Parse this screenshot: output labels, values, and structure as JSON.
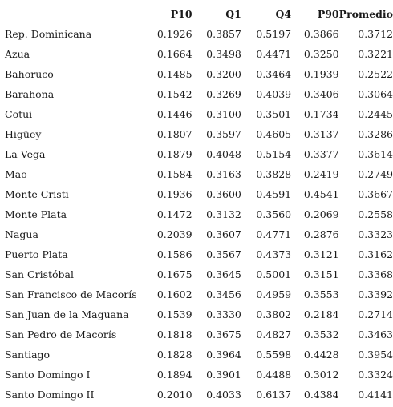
{
  "table": {
    "headers": [
      "",
      "P10",
      "Q1",
      "Q4",
      "P90",
      "Promedio"
    ],
    "rows": [
      [
        "Rep. Dominicana",
        "0.1926",
        "0.3857",
        "0.5197",
        "0.3866",
        "0.3712"
      ],
      [
        "Azua",
        "0.1664",
        "0.3498",
        "0.4471",
        "0.3250",
        "0.3221"
      ],
      [
        "Bahoruco",
        "0.1485",
        "0.3200",
        "0.3464",
        "0.1939",
        "0.2522"
      ],
      [
        "Barahona",
        "0.1542",
        "0.3269",
        "0.4039",
        "0.3406",
        "0.3064"
      ],
      [
        "Cotui",
        "0.1446",
        "0.3100",
        "0.3501",
        "0.1734",
        "0.2445"
      ],
      [
        "Higüey",
        "0.1807",
        "0.3597",
        "0.4605",
        "0.3137",
        "0.3286"
      ],
      [
        "La Vega",
        "0.1879",
        "0.4048",
        "0.5154",
        "0.3377",
        "0.3614"
      ],
      [
        "Mao",
        "0.1584",
        "0.3163",
        "0.3828",
        "0.2419",
        "0.2749"
      ],
      [
        "Monte Cristi",
        "0.1936",
        "0.3600",
        "0.4591",
        "0.4541",
        "0.3667"
      ],
      [
        "Monte Plata",
        "0.1472",
        "0.3132",
        "0.3560",
        "0.2069",
        "0.2558"
      ],
      [
        "Nagua",
        "0.2039",
        "0.3607",
        "0.4771",
        "0.2876",
        "0.3323"
      ],
      [
        "Puerto Plata",
        "0.1586",
        "0.3567",
        "0.4373",
        "0.3121",
        "0.3162"
      ],
      [
        "San Cristóbal",
        "0.1675",
        "0.3645",
        "0.5001",
        "0.3151",
        "0.3368"
      ],
      [
        "San Francisco de Macorís",
        "0.1602",
        "0.3456",
        "0.4959",
        "0.3553",
        "0.3392"
      ],
      [
        "San Juan de la Maguana",
        "0.1539",
        "0.3330",
        "0.3802",
        "0.2184",
        "0.2714"
      ],
      [
        "San Pedro de Macorís",
        "0.1818",
        "0.3675",
        "0.4827",
        "0.3532",
        "0.3463"
      ],
      [
        "Santiago",
        "0.1828",
        "0.3964",
        "0.5598",
        "0.4428",
        "0.3954"
      ],
      [
        "Santo Domingo I",
        "0.1894",
        "0.3901",
        "0.4488",
        "0.3012",
        "0.3324"
      ],
      [
        "Santo Domingo II",
        "0.2010",
        "0.4033",
        "0.6137",
        "0.4384",
        "0.4141"
      ]
    ]
  }
}
